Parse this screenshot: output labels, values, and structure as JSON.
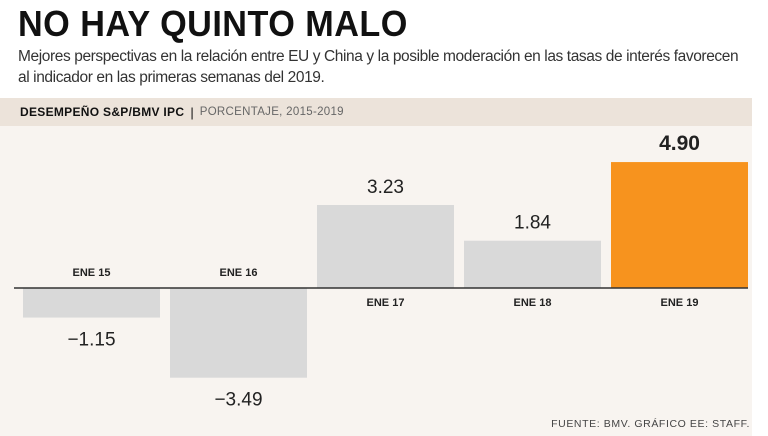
{
  "header": {
    "title": "NO HAY QUINTO MALO",
    "subtitle": "Mejores perspectivas en la relación entre EU y China y la posible moderación en las tasas de interés favorecen al indicador en las primeras semanas del 2019."
  },
  "band": {
    "label": "DESEMPEÑO S&P/BMV IPC",
    "separator": "|",
    "sublabel": "PORCENTAJE, 2015-2019"
  },
  "chart_data": {
    "type": "bar",
    "title": "DESEMPEÑO S&P/BMV IPC",
    "subtitle": "PORCENTAJE, 2015-2019",
    "categories": [
      "ENE 15",
      "ENE 16",
      "ENE 17",
      "ENE 18",
      "ENE 19"
    ],
    "values": [
      -1.15,
      -3.49,
      3.23,
      1.84,
      4.9
    ],
    "value_labels": [
      "−1.15",
      "−3.49",
      "3.23",
      "1.84",
      "4.90"
    ],
    "highlight_index": 4,
    "colors": {
      "default": "#d9d9d9",
      "highlight": "#f7931e",
      "axis": "#333333"
    },
    "xlabel": "",
    "ylabel": "",
    "ylim": [
      -3.49,
      4.9
    ],
    "grid": false
  },
  "footer": {
    "source": "FUENTE: BMV. GRÁFICO EE: STAFF."
  }
}
